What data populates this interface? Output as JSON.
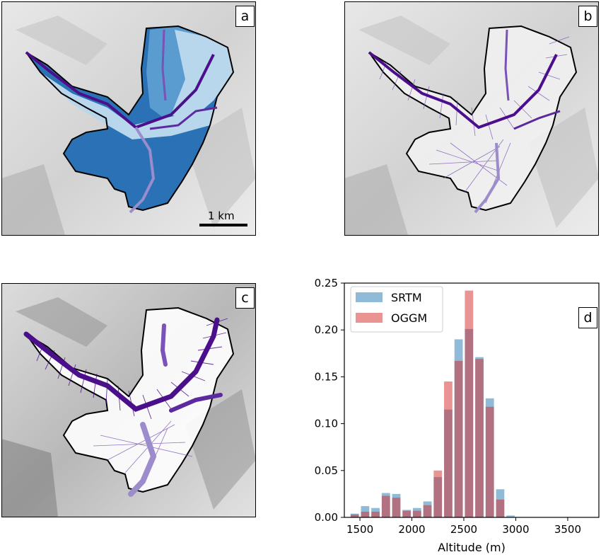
{
  "panels": {
    "a": {
      "letter": "a",
      "scalebar": "1 km"
    },
    "b": {
      "letter": "b"
    },
    "c": {
      "letter": "c"
    }
  },
  "colors": {
    "srtm": "#1f77b4",
    "oggm": "#d62728",
    "flowline_main": "#4b0f8c",
    "flowline_mid": "#7a52b8",
    "flowline_light": "#9c8ccc",
    "catchment_dark": "#2a72b5",
    "catchment_mid": "#5a9bd0",
    "catchment_light": "#b8d6ec"
  },
  "chart_data": {
    "type": "bar",
    "panel_letter": "d",
    "xlabel": "Altitude (m)",
    "ylabel": "",
    "xlim": [
      1350,
      3800
    ],
    "ylim": [
      0,
      0.25
    ],
    "xticks": [
      1500,
      2000,
      2500,
      3000,
      3500
    ],
    "xtick_labels": [
      "1500",
      "2000",
      "2500",
      "3000",
      "3500"
    ],
    "yticks": [
      0,
      0.05,
      0.1,
      0.15,
      0.2,
      0.25
    ],
    "ytick_labels": [
      "0.00",
      "0.05",
      "0.10",
      "0.15",
      "0.20",
      "0.25"
    ],
    "bin_width": 100,
    "x": [
      1450,
      1550,
      1650,
      1750,
      1850,
      1950,
      2050,
      2150,
      2250,
      2350,
      2450,
      2550,
      2650,
      2750,
      2850,
      2950,
      3050,
      3150,
      3250,
      3350,
      3450,
      3550,
      3650
    ],
    "legend_position": "top-left",
    "series": [
      {
        "name": "SRTM",
        "values": [
          0.004,
          0.012,
          0.01,
          0.026,
          0.025,
          0.008,
          0.01,
          0.017,
          0.043,
          0.115,
          0.19,
          0.201,
          0.171,
          0.127,
          0.03,
          0.002,
          0.0,
          0.0,
          0.0,
          0.0,
          0.0,
          0.0,
          0.0
        ]
      },
      {
        "name": "OGGM",
        "values": [
          0.003,
          0.006,
          0.006,
          0.023,
          0.021,
          0.007,
          0.007,
          0.013,
          0.05,
          0.145,
          0.167,
          0.242,
          0.169,
          0.118,
          0.019,
          0.0,
          0.0,
          0.0,
          0.0,
          0.0,
          0.0,
          0.0,
          0.0
        ]
      }
    ]
  }
}
